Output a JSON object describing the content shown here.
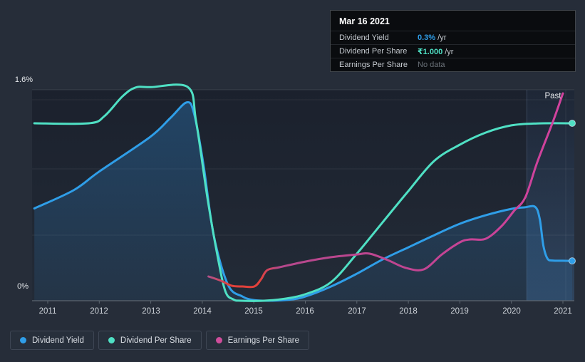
{
  "page": {
    "background": "#262d39"
  },
  "axis_labels": {
    "y_max": "1.6%",
    "y_min": "0%",
    "past": "Past"
  },
  "tooltip": {
    "date": "Mar 16 2021",
    "rows": [
      {
        "label": "Dividend Yield",
        "value": "0.3%",
        "suffix": " /yr",
        "value_color": "#2f9ee8",
        "value_weight": "700"
      },
      {
        "label": "Dividend Per Share",
        "value": "₹1.000",
        "suffix": " /yr",
        "value_color": "#4fe0c4",
        "value_weight": "700"
      },
      {
        "label": "Earnings Per Share",
        "value": "No data",
        "suffix": "",
        "value_color": "#6b7279",
        "value_weight": "400"
      }
    ]
  },
  "legend": [
    {
      "label": "Dividend Yield",
      "color": "#2f9ee8"
    },
    {
      "label": "Dividend Per Share",
      "color": "#4fe0c4"
    },
    {
      "label": "Earnings Per Share",
      "color": "#cf4d9b"
    }
  ],
  "chart_data": {
    "type": "line",
    "x_ticks": [
      "2011",
      "2012",
      "2013",
      "2014",
      "2015",
      "2016",
      "2017",
      "2018",
      "2019",
      "2020",
      "2021"
    ],
    "x_range": [
      2010.74,
      2021.18
    ],
    "y_axis": {
      "unit": "%",
      "min": 0,
      "max": 1.6,
      "labeled_gridlines": [
        "1.6%",
        "0%"
      ]
    },
    "grid": true,
    "legend_position": "bottom-left",
    "past_region_start_year": 2020.3,
    "hover_readout": {
      "date": "Mar 16 2021",
      "dividend_yield": "0.3% /yr",
      "dividend_per_share": "₹1.000 /yr",
      "earnings_per_share": "No data"
    },
    "notes": "y values are plotted in dividend-yield axis units (percent, 0-1.6); DPS and EPS curves are rescaled to this axis. DPS = ₹1.000/yr and yield = 0.3%/yr at the right edge.",
    "series": [
      {
        "name": "Dividend Yield",
        "color": "#2f9ee8",
        "area_fill": true,
        "end_dot": true,
        "points": [
          [
            2010.74,
            0.7
          ],
          [
            2011.5,
            0.838
          ],
          [
            2012.0,
            0.98
          ],
          [
            2012.98,
            1.24
          ],
          [
            2013.39,
            1.39
          ],
          [
            2013.7,
            1.505
          ],
          [
            2013.84,
            1.42
          ],
          [
            2014.02,
            1.04
          ],
          [
            2014.22,
            0.5
          ],
          [
            2014.5,
            0.12
          ],
          [
            2014.78,
            0.032
          ],
          [
            2015.0,
            0.005
          ],
          [
            2015.3,
            0.0
          ],
          [
            2015.7,
            0.008
          ],
          [
            2016.0,
            0.032
          ],
          [
            2016.5,
            0.108
          ],
          [
            2017.0,
            0.205
          ],
          [
            2017.5,
            0.313
          ],
          [
            2018.0,
            0.405
          ],
          [
            2018.5,
            0.497
          ],
          [
            2019.0,
            0.584
          ],
          [
            2019.5,
            0.648
          ],
          [
            2020.0,
            0.697
          ],
          [
            2020.25,
            0.708
          ],
          [
            2020.46,
            0.712
          ],
          [
            2020.55,
            0.62
          ],
          [
            2020.62,
            0.42
          ],
          [
            2020.7,
            0.32
          ],
          [
            2020.8,
            0.305
          ],
          [
            2021.0,
            0.303
          ],
          [
            2021.18,
            0.302
          ]
        ]
      },
      {
        "name": "Dividend Per Share",
        "color": "#4fe0c4",
        "area_fill": false,
        "end_dot": true,
        "points": [
          [
            2010.74,
            1.346
          ],
          [
            2011.8,
            1.346
          ],
          [
            2012.1,
            1.4
          ],
          [
            2012.45,
            1.55
          ],
          [
            2012.7,
            1.617
          ],
          [
            2013.0,
            1.62
          ],
          [
            2013.72,
            1.62
          ],
          [
            2013.88,
            1.36
          ],
          [
            2014.1,
            0.78
          ],
          [
            2014.3,
            0.33
          ],
          [
            2014.45,
            0.07
          ],
          [
            2014.6,
            0.01
          ],
          [
            2014.75,
            0.0
          ],
          [
            2015.2,
            0.0
          ],
          [
            2015.6,
            0.015
          ],
          [
            2016.0,
            0.049
          ],
          [
            2016.5,
            0.141
          ],
          [
            2017.0,
            0.357
          ],
          [
            2017.5,
            0.595
          ],
          [
            2018.0,
            0.832
          ],
          [
            2018.5,
            1.06
          ],
          [
            2019.0,
            1.184
          ],
          [
            2019.5,
            1.275
          ],
          [
            2020.0,
            1.33
          ],
          [
            2020.5,
            1.345
          ],
          [
            2021.18,
            1.346
          ]
        ]
      },
      {
        "name": "Earnings Per Share",
        "color": "#c9458f",
        "area_fill": false,
        "end_dot": false,
        "negative_color": "#e2413b",
        "negative_span_years": [
          2014.45,
          2015.15
        ],
        "stroke_stops": [
          [
            0,
            "#b25088"
          ],
          [
            0.035,
            "#cc4a63"
          ],
          [
            0.055,
            "#e2413b"
          ],
          [
            0.145,
            "#e2413b"
          ],
          [
            0.2,
            "#b5488c"
          ],
          [
            0.55,
            "#c04591"
          ],
          [
            1,
            "#d2429e"
          ]
        ],
        "points": [
          [
            2014.12,
            0.184
          ],
          [
            2014.36,
            0.152
          ],
          [
            2014.57,
            0.114
          ],
          [
            2014.78,
            0.108
          ],
          [
            2015.01,
            0.108
          ],
          [
            2015.14,
            0.162
          ],
          [
            2015.26,
            0.232
          ],
          [
            2015.5,
            0.254
          ],
          [
            2016.0,
            0.297
          ],
          [
            2016.5,
            0.33
          ],
          [
            2017.0,
            0.351
          ],
          [
            2017.25,
            0.357
          ],
          [
            2017.6,
            0.308
          ],
          [
            2017.95,
            0.249
          ],
          [
            2018.3,
            0.238
          ],
          [
            2018.65,
            0.351
          ],
          [
            2019.0,
            0.443
          ],
          [
            2019.2,
            0.465
          ],
          [
            2019.5,
            0.47
          ],
          [
            2019.8,
            0.562
          ],
          [
            2020.05,
            0.681
          ],
          [
            2020.27,
            0.784
          ],
          [
            2020.5,
            1.049
          ],
          [
            2020.8,
            1.351
          ],
          [
            2021.0,
            1.573
          ]
        ]
      }
    ]
  }
}
